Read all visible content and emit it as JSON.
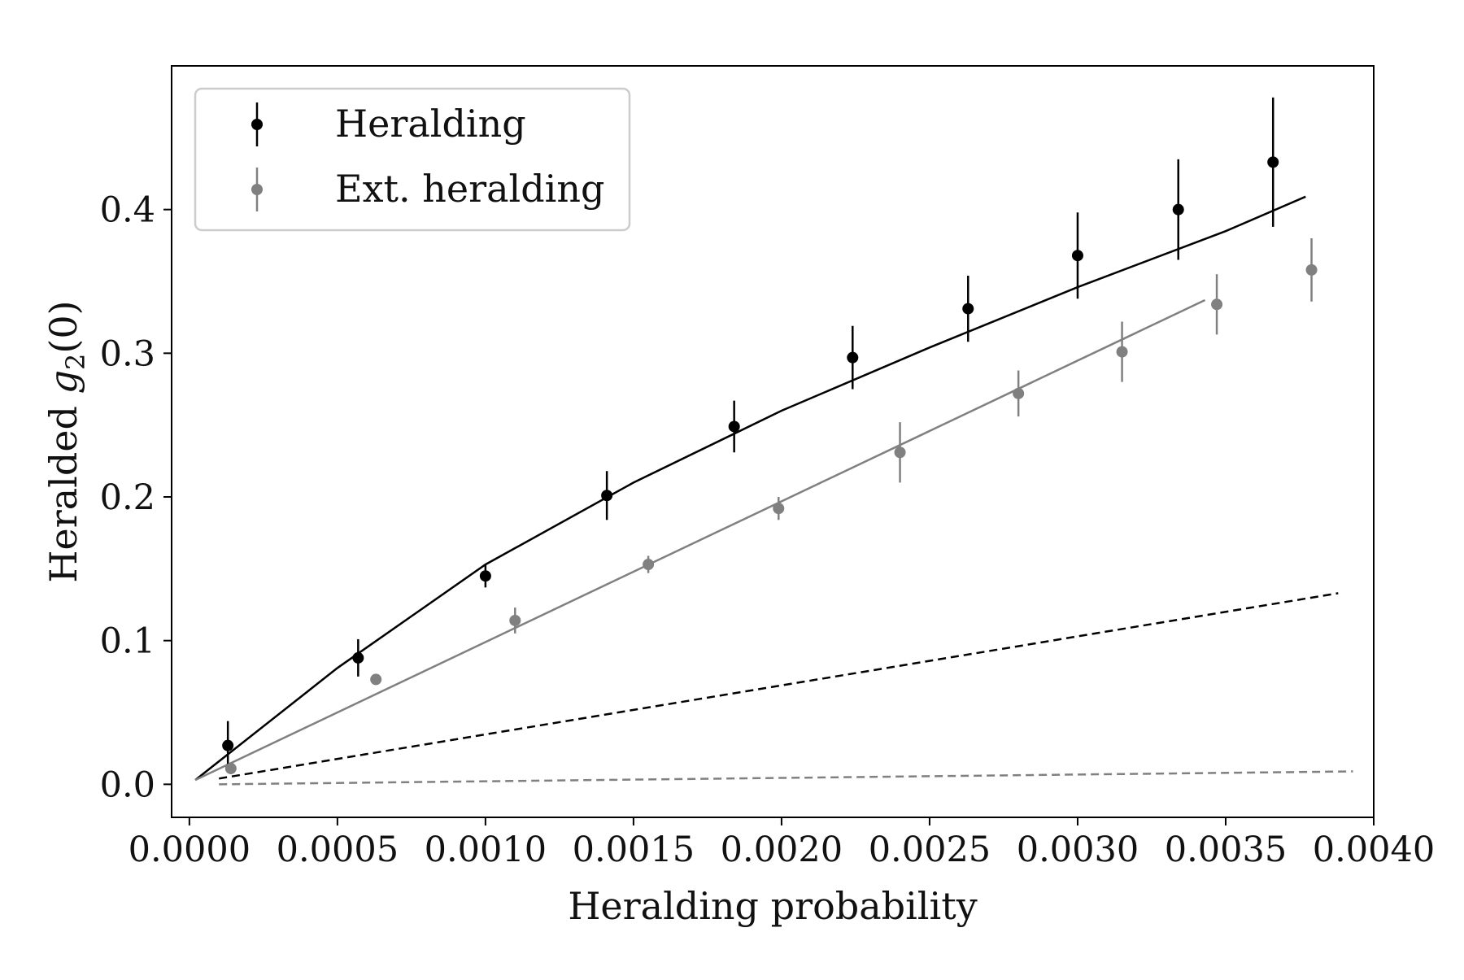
{
  "chart_data": {
    "type": "scatter",
    "xlabel": "Heralding probability",
    "ylabel": "Heralded g2(0)",
    "ylabel_parts": {
      "prefix": "Heralded ",
      "symbol": "g",
      "subscript": "2",
      "suffix": "(0)"
    },
    "xlim": [
      -6e-05,
      0.004
    ],
    "ylim": [
      -0.023,
      0.5
    ],
    "x_ticks": [
      0.0,
      0.0005,
      0.001,
      0.0015,
      0.002,
      0.0025,
      0.003,
      0.0035,
      0.004
    ],
    "x_tick_labels": [
      "0.0000",
      "0.0005",
      "0.0010",
      "0.0015",
      "0.0020",
      "0.0025",
      "0.0030",
      "0.0035",
      "0.0040"
    ],
    "y_ticks": [
      0.0,
      0.1,
      0.2,
      0.3,
      0.4
    ],
    "y_tick_labels": [
      "0.0",
      "0.1",
      "0.2",
      "0.3",
      "0.4"
    ],
    "grid": false,
    "legend_position": "top-left",
    "series": [
      {
        "name": "Heralding",
        "color": "#000000",
        "marker": "circle-errorbar",
        "x": [
          0.00013,
          0.00057,
          0.001,
          0.00141,
          0.00184,
          0.00224,
          0.00263,
          0.003,
          0.00334,
          0.00366
        ],
        "y": [
          0.027,
          0.088,
          0.145,
          0.201,
          0.249,
          0.297,
          0.331,
          0.368,
          0.4,
          0.433
        ],
        "yerr": [
          0.017,
          0.013,
          0.008,
          0.017,
          0.018,
          0.022,
          0.023,
          0.03,
          0.035,
          0.045
        ]
      },
      {
        "name": "Ext. heralding",
        "color": "#808080",
        "marker": "circle-errorbar",
        "x": [
          0.00014,
          0.00063,
          0.0011,
          0.00155,
          0.00199,
          0.0024,
          0.0028,
          0.00315,
          0.00347,
          0.00379
        ],
        "y": [
          0.011,
          0.073,
          0.114,
          0.153,
          0.192,
          0.231,
          0.272,
          0.301,
          0.334,
          0.358
        ],
        "yerr": [
          0.004,
          0.003,
          0.009,
          0.006,
          0.008,
          0.021,
          0.016,
          0.021,
          0.021,
          0.022
        ]
      },
      {
        "color": "#000000",
        "style": "solid",
        "x": [
          2e-05,
          0.0005,
          0.001,
          0.0015,
          0.002,
          0.0025,
          0.003,
          0.0035,
          0.00377
        ],
        "y": [
          0.003,
          0.081,
          0.153,
          0.21,
          0.26,
          0.304,
          0.346,
          0.385,
          0.409
        ]
      },
      {
        "color": "#808080",
        "style": "solid",
        "x": [
          2e-05,
          0.00343
        ],
        "y": [
          0.003,
          0.337
        ]
      },
      {
        "color": "#000000",
        "style": "dashed",
        "x": [
          0.0001,
          0.00388
        ],
        "y": [
          0.004,
          0.133
        ]
      },
      {
        "color": "#808080",
        "style": "dashed",
        "x": [
          0.0001,
          0.00393
        ],
        "y": [
          0.0,
          0.009
        ]
      }
    ]
  }
}
